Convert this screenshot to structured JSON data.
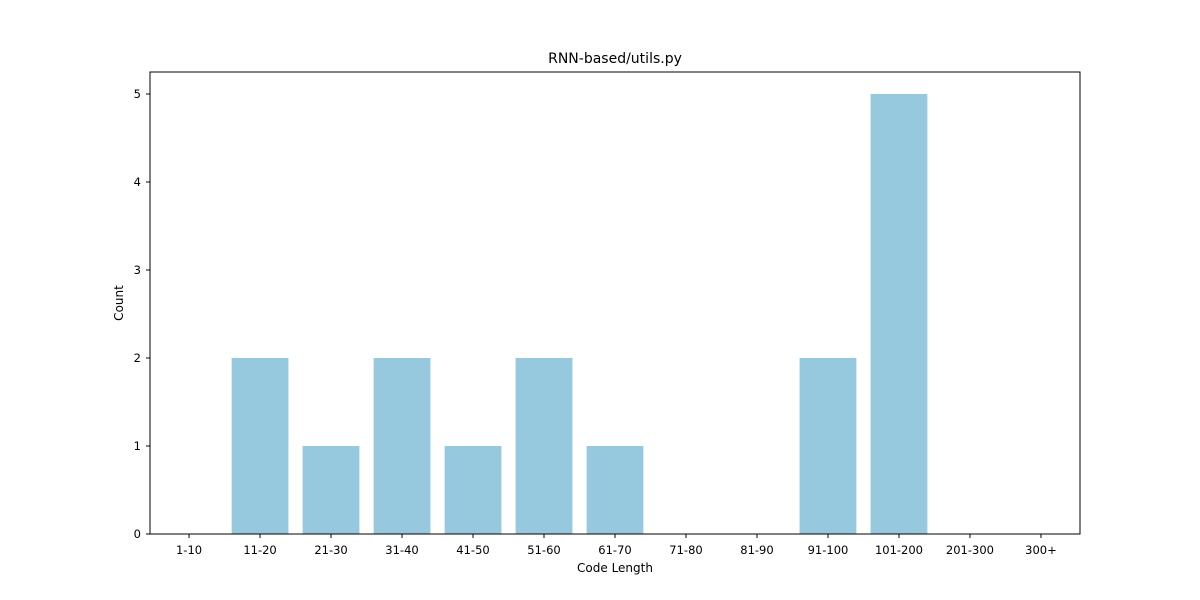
{
  "chart_data": {
    "type": "bar",
    "title": "RNN-based/utils.py",
    "xlabel": "Code Length",
    "ylabel": "Count",
    "categories": [
      "1-10",
      "11-20",
      "21-30",
      "31-40",
      "41-50",
      "51-60",
      "61-70",
      "71-80",
      "81-90",
      "91-100",
      "101-200",
      "201-300",
      "300+"
    ],
    "values": [
      0,
      2,
      1,
      2,
      1,
      2,
      1,
      0,
      0,
      2,
      5,
      0,
      0
    ],
    "ylim": [
      0,
      5.25
    ],
    "yticks": [
      0,
      1,
      2,
      3,
      4,
      5
    ],
    "bar_color": "#96c9dd",
    "grid": false,
    "legend": "none"
  }
}
